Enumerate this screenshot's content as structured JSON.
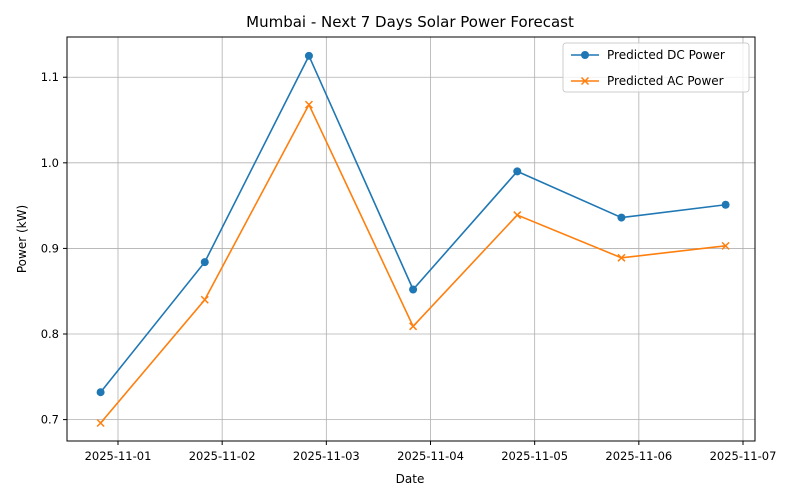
{
  "chart_data": {
    "type": "line",
    "title": "Mumbai - Next 7 Days Solar Power Forecast",
    "xlabel": "Date",
    "ylabel": "Power (kW)",
    "x": [
      "2025-11-00.83",
      "2025-11-01.83",
      "2025-11-02.83",
      "2025-11-03.83",
      "2025-11-04.83",
      "2025-11-05.83",
      "2025-11-06.83"
    ],
    "x_dates": [
      "2025-10-31",
      "2025-11-01",
      "2025-11-02",
      "2025-11-03",
      "2025-11-04",
      "2025-11-05",
      "2025-11-06"
    ],
    "x_ticks": [
      "2025-11-01",
      "2025-11-02",
      "2025-11-03",
      "2025-11-04",
      "2025-11-05",
      "2025-11-06",
      "2025-11-07"
    ],
    "y_ticks": [
      "0.7",
      "0.8",
      "0.9",
      "1.0",
      "1.1"
    ],
    "ylim": [
      0.675,
      1.147
    ],
    "grid": true,
    "legend_position": "top-right",
    "series": [
      {
        "name": "Predicted DC Power",
        "marker": "circle",
        "color": "#1f77b4",
        "values": [
          0.732,
          0.884,
          1.125,
          0.852,
          0.99,
          0.936,
          0.951
        ]
      },
      {
        "name": "Predicted AC Power",
        "marker": "x",
        "color": "#ff7f0e",
        "values": [
          0.696,
          0.84,
          1.068,
          0.809,
          0.939,
          0.889,
          0.903
        ]
      }
    ]
  }
}
